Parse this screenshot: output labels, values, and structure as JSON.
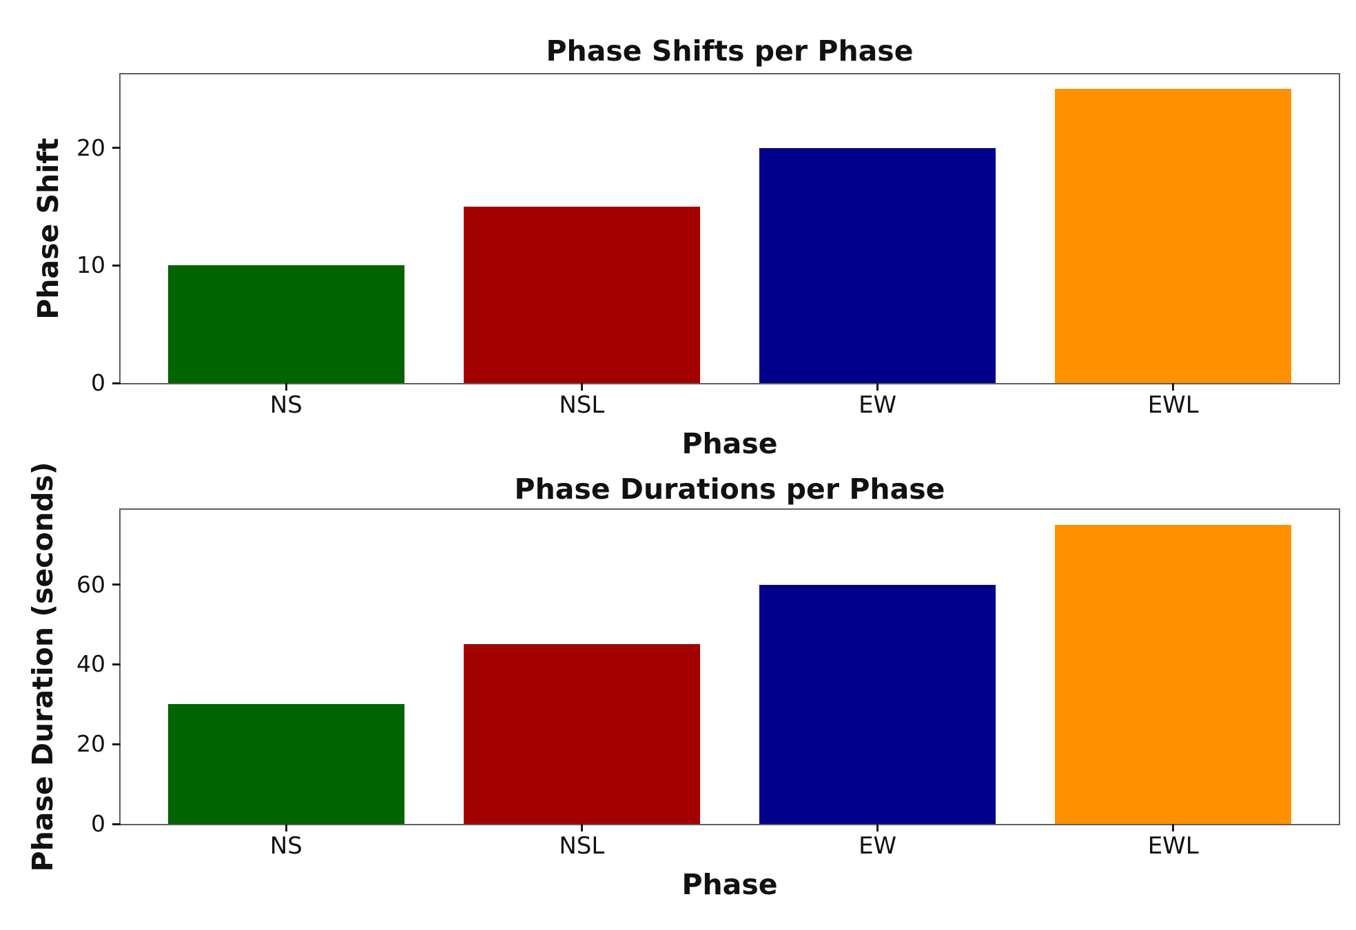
{
  "figure": {
    "background": "#ffffff",
    "spine_color": "#5f5f5f",
    "tick_color": "#1a1a1a",
    "text_color": "#111111"
  },
  "chart_data": [
    {
      "type": "bar",
      "title": "Phase Shifts per Phase",
      "xlabel": "Phase",
      "ylabel": "Phase Shift",
      "categories": [
        "NS",
        "NSL",
        "EW",
        "EWL"
      ],
      "values": [
        10,
        15,
        20,
        25
      ],
      "bar_colors": [
        "#006400",
        "#A30000",
        "#00008B",
        "#FF9100"
      ],
      "yticks": [
        0,
        10,
        20
      ],
      "ylim": [
        0,
        26.25
      ],
      "grid": false,
      "legend": "none"
    },
    {
      "type": "bar",
      "title": "Phase Durations per Phase",
      "xlabel": "Phase",
      "ylabel": "Phase Duration (seconds)",
      "categories": [
        "NS",
        "NSL",
        "EW",
        "EWL"
      ],
      "values": [
        30,
        45,
        60,
        75
      ],
      "bar_colors": [
        "#006400",
        "#A30000",
        "#00008B",
        "#FF9100"
      ],
      "yticks": [
        0,
        20,
        40,
        60
      ],
      "ylim": [
        0,
        78.75
      ],
      "grid": false,
      "legend": "none"
    }
  ]
}
